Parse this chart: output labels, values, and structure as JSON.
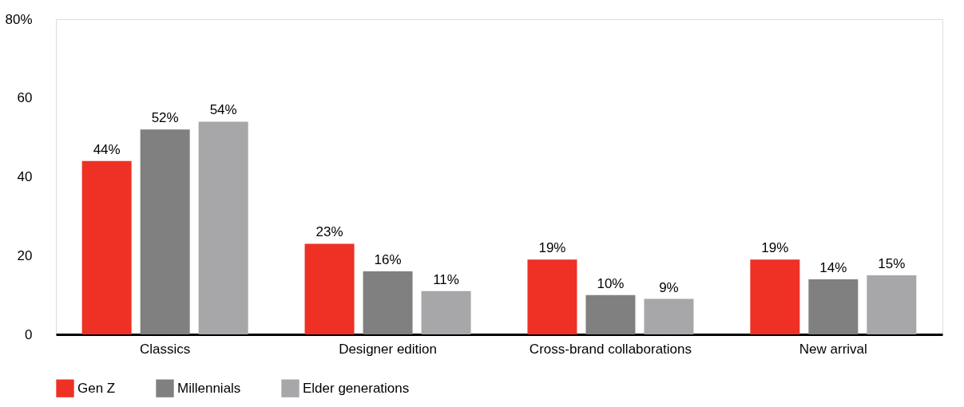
{
  "chart_data": {
    "type": "bar",
    "categories": [
      "Classics",
      "Designer edition",
      "Cross-brand collaborations",
      "New arrival"
    ],
    "series": [
      {
        "name": "Gen Z",
        "color": "#ee3124",
        "values": [
          44,
          23,
          19,
          19
        ],
        "value_labels": [
          "44%",
          "23%",
          "19%",
          "19%"
        ]
      },
      {
        "name": "Millennials",
        "color": "#808080",
        "values": [
          52,
          16,
          10,
          14
        ],
        "value_labels": [
          "52%",
          "16%",
          "10%",
          "14%"
        ]
      },
      {
        "name": "Elder generations",
        "color": "#a7a7a9",
        "values": [
          54,
          11,
          9,
          15
        ],
        "value_labels": [
          "54%",
          "11%",
          "9%",
          "15%"
        ]
      }
    ],
    "ylim": [
      0,
      80
    ],
    "yticks": [
      0,
      20,
      40,
      60,
      {
        "value": 80,
        "label": "80%"
      }
    ],
    "grid": false,
    "legend": "bottom"
  }
}
